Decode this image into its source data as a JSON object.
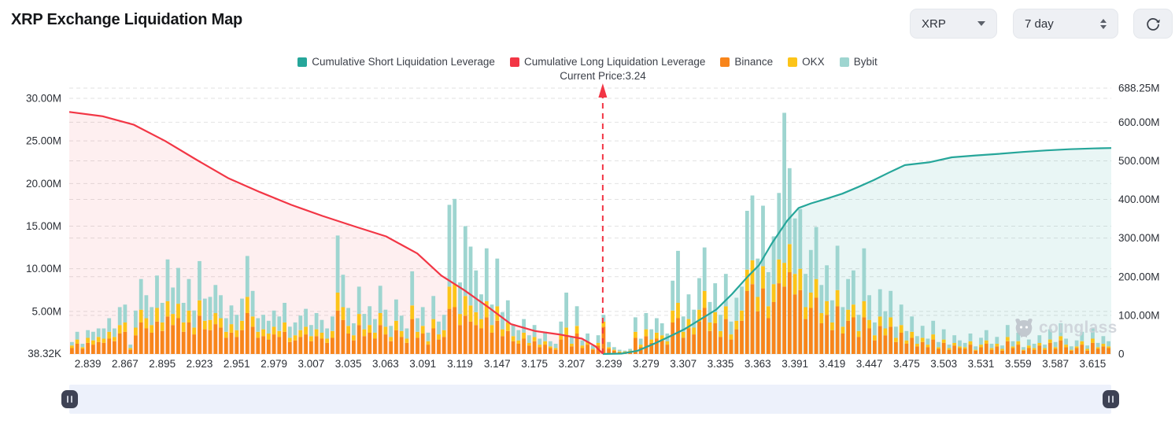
{
  "header": {
    "title": "XRP Exchange Liquidation Map",
    "coin_select": {
      "value": "XRP"
    },
    "range_select": {
      "value": "7 day"
    }
  },
  "legend": [
    {
      "label": "Cumulative Short Liquidation Leverage",
      "color": "#26a69a"
    },
    {
      "label": "Cumulative Long Liquidation Leverage",
      "color": "#f23645"
    },
    {
      "label": "Binance",
      "color": "#f8851b"
    },
    {
      "label": "OKX",
      "color": "#fcc419"
    },
    {
      "label": "Bybit",
      "color": "#9ed5d0"
    }
  ],
  "annotation": {
    "current_price_label": "Current Price:3.24",
    "current_price": "3.24"
  },
  "watermark": {
    "text": "coinglass"
  },
  "chart_data": {
    "type": "bar",
    "subtype": "stacked-bars-with-cumulative-lines",
    "grid": true,
    "legend_position": "top-center",
    "current_price_frac": 0.512,
    "left_axis": {
      "unit": "M",
      "max": 30,
      "ticks": [
        {
          "label": "30.00M",
          "value": 30
        },
        {
          "label": "25.00M",
          "value": 25
        },
        {
          "label": "20.00M",
          "value": 20
        },
        {
          "label": "15.00M",
          "value": 15
        },
        {
          "label": "10.00M",
          "value": 10
        },
        {
          "label": "5.00M",
          "value": 5
        },
        {
          "label": "38.32K",
          "value": 0.03832
        }
      ]
    },
    "right_axis": {
      "unit": "M",
      "max": 688.25,
      "ticks": [
        {
          "label": "688.25M",
          "value": 688.25
        },
        {
          "label": "600.00M",
          "value": 600
        },
        {
          "label": "500.00M",
          "value": 500
        },
        {
          "label": "400.00M",
          "value": 400
        },
        {
          "label": "300.00M",
          "value": 300
        },
        {
          "label": "200.00M",
          "value": 200
        },
        {
          "label": "100.00M",
          "value": 100
        },
        {
          "label": "0",
          "value": 0
        }
      ]
    },
    "x_axis": {
      "tick_labels": [
        "2.839",
        "2.867",
        "2.895",
        "2.923",
        "2.951",
        "2.979",
        "3.007",
        "3.035",
        "3.063",
        "3.091",
        "3.119",
        "3.147",
        "3.175",
        "3.207",
        "3.239",
        "3.279",
        "3.307",
        "3.335",
        "3.363",
        "3.391",
        "3.419",
        "3.447",
        "3.475",
        "3.503",
        "3.531",
        "3.559",
        "3.587",
        "3.615"
      ]
    },
    "bar_series": [
      {
        "name": "Binance",
        "color": "#f8851b"
      },
      {
        "name": "OKX",
        "color": "#fcc419"
      },
      {
        "name": "Bybit",
        "color": "#9ed5d0"
      }
    ],
    "bars_unit": "M (left axis)",
    "bars": [
      [
        0.7,
        0.3,
        0.4
      ],
      [
        1.2,
        0.5,
        0.9
      ],
      [
        0.6,
        0.2,
        0.4
      ],
      [
        1.3,
        0.6,
        0.9
      ],
      [
        1.1,
        0.5,
        1.0
      ],
      [
        1.4,
        0.6,
        1.0
      ],
      [
        1.3,
        0.5,
        1.2
      ],
      [
        1.8,
        0.8,
        1.6
      ],
      [
        1.5,
        0.5,
        1.0
      ],
      [
        2.4,
        1.0,
        2.1
      ],
      [
        2.6,
        1.1,
        2.1
      ],
      [
        0.5,
        0.2,
        0.4
      ],
      [
        2.2,
        0.9,
        2.0
      ],
      [
        3.7,
        1.5,
        3.6
      ],
      [
        3.0,
        1.2,
        2.7
      ],
      [
        2.5,
        0.9,
        2.1
      ],
      [
        3.8,
        1.6,
        3.8
      ],
      [
        2.7,
        1.0,
        2.3
      ],
      [
        4.4,
        1.8,
        4.9
      ],
      [
        3.4,
        1.3,
        3.1
      ],
      [
        4.2,
        1.7,
        4.2
      ],
      [
        2.6,
        1.1,
        2.3
      ],
      [
        3.7,
        1.4,
        3.7
      ],
      [
        2.3,
        0.8,
        2.0
      ],
      [
        4.5,
        1.8,
        4.6
      ],
      [
        2.9,
        1.0,
        2.6
      ],
      [
        2.8,
        1.2,
        2.7
      ],
      [
        3.5,
        1.3,
        3.3
      ],
      [
        3.1,
        1.1,
        2.7
      ],
      [
        1.9,
        0.7,
        1.6
      ],
      [
        2.5,
        1.0,
        2.2
      ],
      [
        2.0,
        0.8,
        1.8
      ],
      [
        2.8,
        1.1,
        2.6
      ],
      [
        4.8,
        1.9,
        4.8
      ],
      [
        3.2,
        1.2,
        3.0
      ],
      [
        1.9,
        0.7,
        1.6
      ],
      [
        2.1,
        0.8,
        1.7
      ],
      [
        1.7,
        0.7,
        1.5
      ],
      [
        2.3,
        0.9,
        1.9
      ],
      [
        2.0,
        0.7,
        1.7
      ],
      [
        2.6,
        1.1,
        2.3
      ],
      [
        1.4,
        0.5,
        1.3
      ],
      [
        1.6,
        0.6,
        1.5
      ],
      [
        2.0,
        0.8,
        1.7
      ],
      [
        2.3,
        0.9,
        2.1
      ],
      [
        1.5,
        0.6,
        1.3
      ],
      [
        2.1,
        0.8,
        1.9
      ],
      [
        1.8,
        0.7,
        1.5
      ],
      [
        1.3,
        0.5,
        1.2
      ],
      [
        1.9,
        0.8,
        1.7
      ],
      [
        5.1,
        2.1,
        6.7
      ],
      [
        4.0,
        1.5,
        3.8
      ],
      [
        2.4,
        0.9,
        2.1
      ],
      [
        1.6,
        0.6,
        1.4
      ],
      [
        3.4,
        1.3,
        3.2
      ],
      [
        2.1,
        0.8,
        1.8
      ],
      [
        2.5,
        0.9,
        2.2
      ],
      [
        1.8,
        0.7,
        1.6
      ],
      [
        3.4,
        1.4,
        3.2
      ],
      [
        2.3,
        0.9,
        2.0
      ],
      [
        1.5,
        0.5,
        1.3
      ],
      [
        2.8,
        1.1,
        2.5
      ],
      [
        2.0,
        0.7,
        1.8
      ],
      [
        1.3,
        0.5,
        1.2
      ],
      [
        4.1,
        1.6,
        4.0
      ],
      [
        1.9,
        0.7,
        1.6
      ],
      [
        2.4,
        0.9,
        2.2
      ],
      [
        1.1,
        0.4,
        1.0
      ],
      [
        3.0,
        1.1,
        2.7
      ],
      [
        1.7,
        0.6,
        1.5
      ],
      [
        2.0,
        0.8,
        1.8
      ],
      [
        5.3,
        2.6,
        9.6
      ],
      [
        5.5,
        2.7,
        10.0
      ],
      [
        3.4,
        1.3,
        3.7
      ],
      [
        4.5,
        2.3,
        8.2
      ],
      [
        3.8,
        1.9,
        6.9
      ],
      [
        3.4,
        1.5,
        4.9
      ],
      [
        3.0,
        1.1,
        2.9
      ],
      [
        4.3,
        1.9,
        6.2
      ],
      [
        2.5,
        0.9,
        2.4
      ],
      [
        3.9,
        1.7,
        5.6
      ],
      [
        2.1,
        0.8,
        2.0
      ],
      [
        2.7,
        1.0,
        2.6
      ],
      [
        1.5,
        0.6,
        1.4
      ],
      [
        1.2,
        0.4,
        1.2
      ],
      [
        1.8,
        0.7,
        1.6
      ],
      [
        1.0,
        0.3,
        0.9
      ],
      [
        1.5,
        0.5,
        1.4
      ],
      [
        0.8,
        0.3,
        0.7
      ],
      [
        1.1,
        0.4,
        1.1
      ],
      [
        0.7,
        0.2,
        0.6
      ],
      [
        0.5,
        0.2,
        0.5
      ],
      [
        1.7,
        0.6,
        1.5
      ],
      [
        2.2,
        0.9,
        4.1
      ],
      [
        0.9,
        0.3,
        0.8
      ],
      [
        2.4,
        0.9,
        2.3
      ],
      [
        0.7,
        0.3,
        0.6
      ],
      [
        1.1,
        0.4,
        0.9
      ],
      [
        0.5,
        0.1,
        0.4
      ],
      [
        1.0,
        0.3,
        0.9
      ],
      [
        3.2,
        0.6,
        0.8
      ],
      [
        0.6,
        0.2,
        0.6
      ],
      [
        0.4,
        0.1,
        0.3
      ],
      [
        0.2,
        0.1,
        0.2
      ],
      [
        0.2,
        0.1,
        0.1
      ],
      [
        0.3,
        0.1,
        0.2
      ],
      [
        1.9,
        0.7,
        1.7
      ],
      [
        0.8,
        0.3,
        0.7
      ],
      [
        2.1,
        0.8,
        1.9
      ],
      [
        1.3,
        0.4,
        1.2
      ],
      [
        1.8,
        0.7,
        1.7
      ],
      [
        1.6,
        0.6,
        1.4
      ],
      [
        1.1,
        0.4,
        0.9
      ],
      [
        3.7,
        1.4,
        3.5
      ],
      [
        4.2,
        1.8,
        6.1
      ],
      [
        1.9,
        0.7,
        1.8
      ],
      [
        3.0,
        1.1,
        2.9
      ],
      [
        2.3,
        0.8,
        2.1
      ],
      [
        3.8,
        1.4,
        3.7
      ],
      [
        5.4,
        2.0,
        5.1
      ],
      [
        2.7,
        1.0,
        2.4
      ],
      [
        3.6,
        1.3,
        3.4
      ],
      [
        2.0,
        0.7,
        1.9
      ],
      [
        4.1,
        1.5,
        3.8
      ],
      [
        1.7,
        0.6,
        1.5
      ],
      [
        2.9,
        1.0,
        2.7
      ],
      [
        3.9,
        1.2,
        2.8
      ],
      [
        7.4,
        2.5,
        6.9
      ],
      [
        8.2,
        2.8,
        7.6
      ],
      [
        5.0,
        1.7,
        4.5
      ],
      [
        7.7,
        2.6,
        7.1
      ],
      [
        4.2,
        1.4,
        4.0
      ],
      [
        6.1,
        2.1,
        5.6
      ],
      [
        8.3,
        2.8,
        7.8
      ],
      [
        7.9,
        2.8,
        17.6
      ],
      [
        9.6,
        3.3,
        8.9
      ],
      [
        7.0,
        2.4,
        6.5
      ],
      [
        7.5,
        2.5,
        7.0
      ],
      [
        4.1,
        1.4,
        3.9
      ],
      [
        5.4,
        1.8,
        5.0
      ],
      [
        6.6,
        2.2,
        6.1
      ],
      [
        3.6,
        1.2,
        3.3
      ],
      [
        4.6,
        1.6,
        4.2
      ],
      [
        2.8,
        0.9,
        2.6
      ],
      [
        5.6,
        1.9,
        5.2
      ],
      [
        2.4,
        0.8,
        2.3
      ],
      [
        3.9,
        1.3,
        3.6
      ],
      [
        4.3,
        1.5,
        4.0
      ],
      [
        2.0,
        0.7,
        1.9
      ],
      [
        4.3,
        1.9,
        6.2
      ],
      [
        3.0,
        1.0,
        2.9
      ],
      [
        1.6,
        0.6,
        1.5
      ],
      [
        3.3,
        1.1,
        3.2
      ],
      [
        2.2,
        0.8,
        2.0
      ],
      [
        3.2,
        1.1,
        3.1
      ],
      [
        1.4,
        0.5,
        1.3
      ],
      [
        2.5,
        0.9,
        2.4
      ],
      [
        1.2,
        0.4,
        1.1
      ],
      [
        1.9,
        0.7,
        1.8
      ],
      [
        0.9,
        0.3,
        0.9
      ],
      [
        1.4,
        0.5,
        1.4
      ],
      [
        0.8,
        0.3,
        0.7
      ],
      [
        1.7,
        0.6,
        1.6
      ],
      [
        0.6,
        0.2,
        0.6
      ],
      [
        1.3,
        0.4,
        1.2
      ],
      [
        0.5,
        0.2,
        0.4
      ],
      [
        1.0,
        0.3,
        0.9
      ],
      [
        0.7,
        0.2,
        0.7
      ],
      [
        0.6,
        0.2,
        0.5
      ],
      [
        1.1,
        0.4,
        0.9
      ],
      [
        0.4,
        0.1,
        0.4
      ],
      [
        0.8,
        0.3,
        0.8
      ],
      [
        1.2,
        0.4,
        1.2
      ],
      [
        0.5,
        0.2,
        0.5
      ],
      [
        0.9,
        0.3,
        0.8
      ],
      [
        0.4,
        0.2,
        0.4
      ],
      [
        1.5,
        0.5,
        1.4
      ],
      [
        0.7,
        0.2,
        0.6
      ],
      [
        1.1,
        0.4,
        1.0
      ],
      [
        0.4,
        0.1,
        0.3
      ],
      [
        0.7,
        0.3,
        0.7
      ],
      [
        0.5,
        0.2,
        0.5
      ],
      [
        1.0,
        0.3,
        0.9
      ],
      [
        0.5,
        0.2,
        0.4
      ],
      [
        1.3,
        0.4,
        1.2
      ],
      [
        0.6,
        0.2,
        0.6
      ],
      [
        1.6,
        0.5,
        1.5
      ],
      [
        0.8,
        0.3,
        0.7
      ],
      [
        0.4,
        0.1,
        0.4
      ],
      [
        0.7,
        0.2,
        0.7
      ],
      [
        1.1,
        0.4,
        1.1
      ],
      [
        0.4,
        0.2,
        0.4
      ],
      [
        1.3,
        0.5,
        1.2
      ],
      [
        0.6,
        0.2,
        0.5
      ],
      [
        0.9,
        0.3,
        0.9
      ],
      [
        0.7,
        0.2,
        0.6
      ]
    ],
    "long_line": {
      "name": "Cumulative Long Liquidation Leverage",
      "color": "#f23645",
      "fill": "rgba(242,54,69,0.08)",
      "axis": "left",
      "points": [
        [
          0,
          28.4
        ],
        [
          0.032,
          27.9
        ],
        [
          0.062,
          26.9
        ],
        [
          0.092,
          25.0
        ],
        [
          0.122,
          22.8
        ],
        [
          0.153,
          20.6
        ],
        [
          0.183,
          19.0
        ],
        [
          0.213,
          17.5
        ],
        [
          0.243,
          16.2
        ],
        [
          0.273,
          15.0
        ],
        [
          0.304,
          13.8
        ],
        [
          0.334,
          11.8
        ],
        [
          0.357,
          9.2
        ],
        [
          0.379,
          7.5
        ],
        [
          0.402,
          5.5
        ],
        [
          0.424,
          3.5
        ],
        [
          0.447,
          2.7
        ],
        [
          0.47,
          2.3
        ],
        [
          0.492,
          1.8
        ],
        [
          0.505,
          0.9
        ],
        [
          0.512,
          0.05
        ]
      ]
    },
    "short_line": {
      "name": "Cumulative Short Liquidation Leverage",
      "color": "#26a69a",
      "fill": "rgba(38,166,154,0.10)",
      "axis": "right",
      "points": [
        [
          0.512,
          0.1
        ],
        [
          0.53,
          1
        ],
        [
          0.545,
          8
        ],
        [
          0.56,
          25
        ],
        [
          0.576,
          45
        ],
        [
          0.591,
          65
        ],
        [
          0.606,
          90
        ],
        [
          0.621,
          115
        ],
        [
          0.636,
          155
        ],
        [
          0.651,
          200
        ],
        [
          0.662,
          230
        ],
        [
          0.674,
          285
        ],
        [
          0.689,
          345
        ],
        [
          0.7,
          378
        ],
        [
          0.712,
          390
        ],
        [
          0.727,
          402
        ],
        [
          0.742,
          415
        ],
        [
          0.757,
          432
        ],
        [
          0.772,
          450
        ],
        [
          0.787,
          470
        ],
        [
          0.802,
          489
        ],
        [
          0.825,
          496
        ],
        [
          0.847,
          509
        ],
        [
          0.87,
          514
        ],
        [
          0.892,
          518
        ],
        [
          0.915,
          523
        ],
        [
          0.938,
          527
        ],
        [
          0.96,
          530
        ],
        [
          0.983,
          532
        ],
        [
          1,
          533
        ]
      ]
    }
  }
}
